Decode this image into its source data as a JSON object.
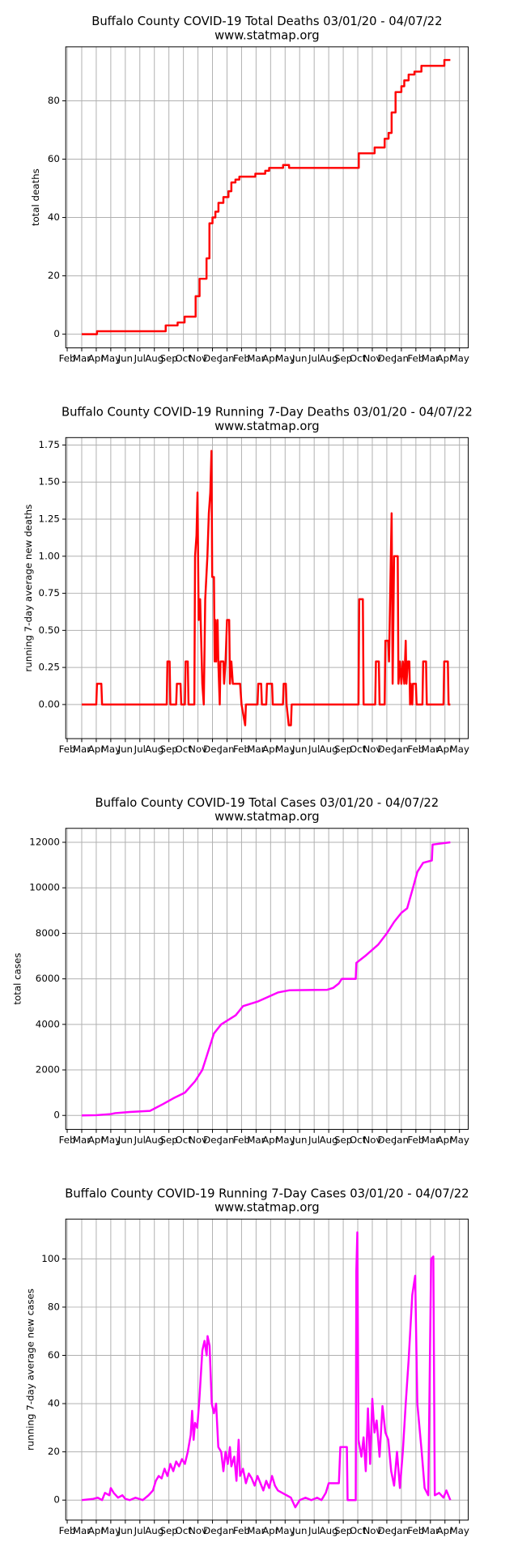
{
  "chart_data": [
    {
      "type": "line",
      "title": "Buffalo County COVID-19 Total Deaths 03/01/20 - 04/07/22",
      "subtitle": "www.statmap.org",
      "ylabel": "total deaths",
      "color": "#ff0000",
      "grid": true,
      "xlim": [
        -0.1,
        27.6
      ],
      "ylim": [
        -4.7,
        98.5
      ],
      "yticks": [
        0,
        20,
        40,
        60,
        80
      ],
      "xticks": [
        {
          "value": 0,
          "label": "Feb"
        },
        {
          "value": 1,
          "label": "Mar"
        },
        {
          "value": 2,
          "label": "Apr"
        },
        {
          "value": 3,
          "label": "May"
        },
        {
          "value": 4,
          "label": "Jun"
        },
        {
          "value": 5,
          "label": "Jul"
        },
        {
          "value": 6,
          "label": "Aug"
        },
        {
          "value": 7,
          "label": "Sep"
        },
        {
          "value": 8,
          "label": "Oct"
        },
        {
          "value": 9,
          "label": "Nov"
        },
        {
          "value": 10,
          "label": "Dec"
        },
        {
          "value": 11,
          "label": "Jan"
        },
        {
          "value": 12,
          "label": "Feb"
        },
        {
          "value": 13,
          "label": "Mar"
        },
        {
          "value": 14,
          "label": "Apr"
        },
        {
          "value": 15,
          "label": "May"
        },
        {
          "value": 16,
          "label": "Jun"
        },
        {
          "value": 17,
          "label": "Jul"
        },
        {
          "value": 18,
          "label": "Aug"
        },
        {
          "value": 19,
          "label": "Sep"
        },
        {
          "value": 20,
          "label": "Oct"
        },
        {
          "value": 21,
          "label": "Nov"
        },
        {
          "value": 22,
          "label": "Dec"
        },
        {
          "value": 23,
          "label": "Jan"
        },
        {
          "value": 24,
          "label": "Feb"
        },
        {
          "value": 25,
          "label": "Mar"
        },
        {
          "value": 26,
          "label": "Apr"
        },
        {
          "value": 27,
          "label": "May"
        }
      ],
      "x": [
        1,
        2.05,
        2.05,
        6.78,
        6.78,
        7.6,
        7.6,
        8.08,
        8.08,
        8.84,
        8.84,
        9.11,
        9.11,
        9.59,
        9.59,
        9.79,
        9.79,
        10.0,
        10.0,
        10.2,
        10.2,
        10.41,
        10.41,
        10.75,
        10.75,
        11.1,
        11.1,
        11.3,
        11.3,
        11.58,
        11.58,
        11.85,
        11.85,
        12.05,
        12.05,
        12.95,
        12.95,
        13.63,
        13.63,
        13.9,
        13.9,
        14.86,
        14.86,
        15.27,
        15.27,
        20.07,
        20.07,
        21.16,
        21.16,
        21.85,
        21.85,
        22.12,
        22.12,
        22.33,
        22.33,
        22.6,
        22.6,
        23.0,
        23.0,
        23.2,
        23.2,
        23.5,
        23.5,
        23.9,
        23.9,
        24.38,
        24.38,
        25.96,
        25.96,
        26.37
      ],
      "values": [
        0,
        0,
        1,
        1,
        3,
        3,
        4,
        4,
        6,
        6,
        13,
        13,
        19,
        19,
        26,
        26,
        38,
        38,
        40,
        40,
        42,
        42,
        45,
        45,
        47,
        47,
        49,
        49,
        52,
        52,
        53,
        53,
        54,
        54,
        54,
        54,
        55,
        55,
        56,
        56,
        57,
        57,
        58,
        58,
        57,
        57,
        62,
        62,
        64,
        64,
        67,
        67,
        69,
        69,
        76,
        76,
        83,
        83,
        85,
        85,
        87,
        87,
        89,
        89,
        90,
        90,
        92,
        92,
        94,
        94
      ]
    },
    {
      "type": "line",
      "title": "Buffalo County COVID-19 Running 7-Day Deaths 03/01/20 - 04/07/22",
      "subtitle": "www.statmap.org",
      "ylabel": "running 7-day average new deaths",
      "color": "#ff0000",
      "grid": true,
      "xlim": [
        -0.1,
        27.6
      ],
      "ylim": [
        -0.23,
        1.8
      ],
      "yticks": [
        {
          "value": 0,
          "label": "0.00"
        },
        {
          "value": 0.25,
          "label": "0.25"
        },
        {
          "value": 0.5,
          "label": "0.50"
        },
        {
          "value": 0.75,
          "label": "0.75"
        },
        {
          "value": 1,
          "label": "1.00"
        },
        {
          "value": 1.25,
          "label": "1.25"
        },
        {
          "value": 1.5,
          "label": "1.50"
        },
        {
          "value": 1.75,
          "label": "1.75"
        }
      ],
      "xticks": [
        {
          "value": 0,
          "label": "Feb"
        },
        {
          "value": 1,
          "label": "Mar"
        },
        {
          "value": 2,
          "label": "Apr"
        },
        {
          "value": 3,
          "label": "May"
        },
        {
          "value": 4,
          "label": "Jun"
        },
        {
          "value": 5,
          "label": "Jul"
        },
        {
          "value": 6,
          "label": "Aug"
        },
        {
          "value": 7,
          "label": "Sep"
        },
        {
          "value": 8,
          "label": "Oct"
        },
        {
          "value": 9,
          "label": "Nov"
        },
        {
          "value": 10,
          "label": "Dec"
        },
        {
          "value": 11,
          "label": "Jan"
        },
        {
          "value": 12,
          "label": "Feb"
        },
        {
          "value": 13,
          "label": "Mar"
        },
        {
          "value": 14,
          "label": "Apr"
        },
        {
          "value": 15,
          "label": "May"
        },
        {
          "value": 16,
          "label": "Jun"
        },
        {
          "value": 17,
          "label": "Jul"
        },
        {
          "value": 18,
          "label": "Aug"
        },
        {
          "value": 19,
          "label": "Sep"
        },
        {
          "value": 20,
          "label": "Oct"
        },
        {
          "value": 21,
          "label": "Nov"
        },
        {
          "value": 22,
          "label": "Dec"
        },
        {
          "value": 23,
          "label": "Jan"
        },
        {
          "value": 24,
          "label": "Feb"
        },
        {
          "value": 25,
          "label": "Mar"
        },
        {
          "value": 26,
          "label": "Apr"
        },
        {
          "value": 27,
          "label": "May"
        }
      ],
      "x": [
        1,
        2.0,
        2.05,
        2.35,
        2.4,
        6.85,
        6.9,
        7.05,
        7.1,
        7.5,
        7.55,
        7.8,
        7.85,
        8.1,
        8.15,
        8.3,
        8.35,
        8.75,
        8.8,
        8.9,
        8.97,
        9.05,
        9.15,
        9.3,
        9.4,
        9.5,
        9.65,
        9.75,
        9.85,
        9.93,
        9.98,
        10.1,
        10.15,
        10.2,
        10.25,
        10.35,
        10.4,
        10.5,
        10.55,
        10.75,
        10.8,
        10.9,
        11.0,
        11.15,
        11.2,
        11.3,
        11.4,
        11.9,
        12.0,
        12.25,
        12.3,
        13.1,
        13.15,
        13.35,
        13.4,
        13.7,
        13.75,
        14.1,
        14.15,
        14.85,
        14.9,
        15.05,
        15.1,
        15.25,
        15.4,
        15.45,
        20.05,
        20.1,
        20.35,
        20.4,
        21.2,
        21.25,
        21.45,
        21.5,
        21.85,
        21.9,
        22.1,
        22.15,
        22.33,
        22.4,
        22.5,
        22.75,
        22.8,
        22.9,
        23.0,
        23.1,
        23.2,
        23.3,
        23.35,
        23.45,
        23.55,
        23.6,
        23.65,
        23.75,
        23.8,
        24.0,
        24.05,
        24.45,
        24.5,
        24.7,
        24.75,
        25.9,
        25.95,
        26.2,
        26.25,
        26.37
      ],
      "values": [
        0,
        0,
        0.14,
        0.14,
        0,
        0,
        0.29,
        0.29,
        0,
        0,
        0.14,
        0.14,
        0,
        0,
        0.29,
        0.29,
        0,
        0,
        1.0,
        1.14,
        1.43,
        0.57,
        0.71,
        0.14,
        0,
        0.71,
        1.0,
        1.29,
        1.43,
        1.71,
        0.86,
        0.86,
        0.29,
        0.57,
        0.29,
        0.57,
        0.29,
        0,
        0.29,
        0.29,
        0.14,
        0.29,
        0.57,
        0.57,
        0.14,
        0.29,
        0.14,
        0.14,
        0,
        -0.14,
        0,
        0,
        0.14,
        0.14,
        0,
        0,
        0.14,
        0.14,
        0,
        0,
        0.14,
        0.14,
        0,
        -0.14,
        -0.14,
        0,
        0,
        0.71,
        0.71,
        0,
        0,
        0.29,
        0.29,
        0,
        0,
        0.43,
        0.43,
        0.29,
        1.29,
        0.14,
        1.0,
        1.0,
        0.14,
        0.29,
        0.14,
        0.29,
        0.14,
        0.43,
        0.14,
        0.29,
        0.29,
        0,
        0.14,
        0,
        0.14,
        0.14,
        0,
        0,
        0.29,
        0.29,
        0,
        0,
        0.29,
        0.29,
        0,
        0
      ]
    },
    {
      "type": "line",
      "title": "Buffalo County COVID-19 Total Cases 03/01/20 - 04/07/22",
      "subtitle": "www.statmap.org",
      "ylabel": "total cases",
      "color": "#ff00ff",
      "grid": true,
      "xlim": [
        -0.1,
        27.6
      ],
      "ylim": [
        -613,
        12613
      ],
      "yticks": [
        0,
        2000,
        4000,
        6000,
        8000,
        10000,
        12000
      ],
      "xticks": [
        {
          "value": 0,
          "label": "Feb"
        },
        {
          "value": 1,
          "label": "Mar"
        },
        {
          "value": 2,
          "label": "Apr"
        },
        {
          "value": 3,
          "label": "May"
        },
        {
          "value": 4,
          "label": "Jun"
        },
        {
          "value": 5,
          "label": "Jul"
        },
        {
          "value": 6,
          "label": "Aug"
        },
        {
          "value": 7,
          "label": "Sep"
        },
        {
          "value": 8,
          "label": "Oct"
        },
        {
          "value": 9,
          "label": "Nov"
        },
        {
          "value": 10,
          "label": "Dec"
        },
        {
          "value": 11,
          "label": "Jan"
        },
        {
          "value": 12,
          "label": "Feb"
        },
        {
          "value": 13,
          "label": "Mar"
        },
        {
          "value": 14,
          "label": "Apr"
        },
        {
          "value": 15,
          "label": "May"
        },
        {
          "value": 16,
          "label": "Jun"
        },
        {
          "value": 17,
          "label": "Jul"
        },
        {
          "value": 18,
          "label": "Aug"
        },
        {
          "value": 19,
          "label": "Sep"
        },
        {
          "value": 20,
          "label": "Oct"
        },
        {
          "value": 21,
          "label": "Nov"
        },
        {
          "value": 22,
          "label": "Dec"
        },
        {
          "value": 23,
          "label": "Jan"
        },
        {
          "value": 24,
          "label": "Feb"
        },
        {
          "value": 25,
          "label": "Mar"
        },
        {
          "value": 26,
          "label": "Apr"
        },
        {
          "value": 27,
          "label": "May"
        }
      ],
      "x": [
        1,
        2,
        3,
        3.3,
        4.3,
        5.7,
        6.6,
        7.3,
        8.1,
        8.8,
        9.3,
        9.7,
        10.1,
        10.6,
        11.1,
        11.6,
        12.1,
        13.1,
        13.8,
        14.5,
        15.3,
        17.9,
        18.3,
        18.7,
        18.9,
        19.86,
        19.9,
        20.5,
        21.4,
        22,
        22.5,
        23,
        23.4,
        23.8,
        24.1,
        24.5,
        25.1,
        25.15,
        26.37
      ],
      "values": [
        0,
        10,
        60,
        100,
        150,
        200,
        500,
        750,
        1000,
        1500,
        2000,
        2800,
        3600,
        4000,
        4200,
        4400,
        4800,
        5000,
        5200,
        5400,
        5500,
        5520,
        5600,
        5800,
        6000,
        6000,
        6700,
        7000,
        7500,
        8000,
        8500,
        8900,
        9100,
        10000,
        10700,
        11100,
        11200,
        11900,
        12000
      ]
    },
    {
      "type": "line",
      "title": "Buffalo County COVID-19 Running 7-Day Cases 03/01/20 - 04/07/22",
      "subtitle": "www.statmap.org",
      "ylabel": "running 7-day average new cases",
      "color": "#ff00ff",
      "grid": true,
      "xlim": [
        -0.1,
        27.6
      ],
      "ylim": [
        -8.3,
        116.5
      ],
      "yticks": [
        0,
        20,
        40,
        60,
        80,
        100
      ],
      "xticks": [
        {
          "value": 0,
          "label": "Feb"
        },
        {
          "value": 1,
          "label": "Mar"
        },
        {
          "value": 2,
          "label": "Apr"
        },
        {
          "value": 3,
          "label": "May"
        },
        {
          "value": 4,
          "label": "Jun"
        },
        {
          "value": 5,
          "label": "Jul"
        },
        {
          "value": 6,
          "label": "Aug"
        },
        {
          "value": 7,
          "label": "Sep"
        },
        {
          "value": 8,
          "label": "Oct"
        },
        {
          "value": 9,
          "label": "Nov"
        },
        {
          "value": 10,
          "label": "Dec"
        },
        {
          "value": 11,
          "label": "Jan"
        },
        {
          "value": 12,
          "label": "Feb"
        },
        {
          "value": 13,
          "label": "Mar"
        },
        {
          "value": 14,
          "label": "Apr"
        },
        {
          "value": 15,
          "label": "May"
        },
        {
          "value": 16,
          "label": "Jun"
        },
        {
          "value": 17,
          "label": "Jul"
        },
        {
          "value": 18,
          "label": "Aug"
        },
        {
          "value": 19,
          "label": "Sep"
        },
        {
          "value": 20,
          "label": "Oct"
        },
        {
          "value": 21,
          "label": "Nov"
        },
        {
          "value": 22,
          "label": "Dec"
        },
        {
          "value": 23,
          "label": "Jan"
        },
        {
          "value": 24,
          "label": "Feb"
        },
        {
          "value": 25,
          "label": "Mar"
        },
        {
          "value": 26,
          "label": "Apr"
        },
        {
          "value": 27,
          "label": "May"
        }
      ],
      "x": [
        1,
        1.8,
        2.1,
        2.4,
        2.6,
        2.9,
        3.0,
        3.2,
        3.5,
        3.8,
        4.0,
        4.3,
        4.7,
        5.2,
        5.6,
        5.9,
        6.1,
        6.3,
        6.5,
        6.7,
        6.9,
        7.1,
        7.3,
        7.5,
        7.7,
        7.9,
        8.1,
        8.3,
        8.5,
        8.6,
        8.7,
        8.8,
        8.95,
        9.1,
        9.3,
        9.45,
        9.6,
        9.66,
        9.8,
        9.95,
        10.1,
        10.25,
        10.4,
        10.6,
        10.75,
        10.9,
        11.05,
        11.2,
        11.3,
        11.5,
        11.65,
        11.8,
        11.9,
        12.1,
        12.3,
        12.5,
        12.7,
        12.9,
        13.1,
        13.3,
        13.5,
        13.7,
        13.9,
        14.1,
        14.3,
        14.5,
        14.8,
        15.1,
        15.4,
        15.7,
        16,
        16.4,
        16.8,
        17.2,
        17.5,
        17.8,
        18.0,
        18.7,
        18.8,
        19.25,
        19.3,
        19.86,
        19.9,
        19.97,
        20.05,
        20.25,
        20.4,
        20.55,
        20.7,
        20.85,
        21.0,
        21.15,
        21.3,
        21.5,
        21.7,
        21.9,
        22.1,
        22.3,
        22.5,
        22.7,
        22.9,
        23.1,
        23.3,
        23.5,
        23.75,
        23.95,
        24.1,
        24.4,
        24.6,
        24.85,
        25.05,
        25.2,
        25.3,
        25.6,
        25.9,
        26.1,
        26.37
      ],
      "values": [
        0,
        0.5,
        1,
        0,
        3,
        2,
        5,
        3,
        1,
        2,
        0.5,
        0,
        1,
        0,
        2,
        4,
        8,
        10,
        9,
        13,
        10,
        15,
        12,
        16,
        14,
        17,
        15,
        20,
        27,
        37,
        25,
        32,
        30,
        42,
        62,
        66,
        60,
        68,
        64,
        40,
        36,
        40,
        22,
        20,
        12,
        20,
        15,
        22,
        14,
        18,
        8,
        25,
        10,
        13,
        7,
        11,
        9,
        6,
        10,
        7,
        4,
        8,
        5,
        10,
        6,
        4,
        3,
        2,
        1,
        -3,
        0,
        1,
        0,
        1,
        0,
        3,
        7,
        7,
        22,
        22,
        0,
        0,
        95,
        111,
        25,
        18,
        26,
        12,
        38,
        15,
        42,
        28,
        33,
        18,
        39,
        28,
        25,
        12,
        6,
        20,
        5,
        20,
        40,
        58,
        85,
        93,
        40,
        20,
        5,
        2,
        100,
        101,
        2,
        3,
        1,
        4,
        0
      ]
    }
  ]
}
